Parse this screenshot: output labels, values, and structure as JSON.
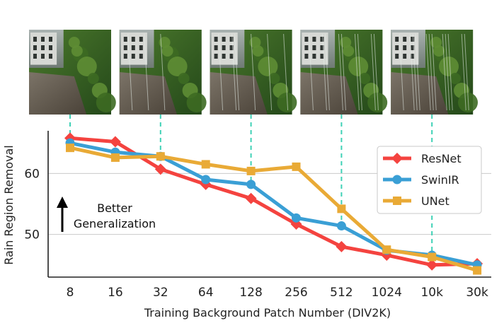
{
  "chart_data": {
    "type": "line",
    "title": "",
    "xlabel": "Training Background Patch Number (DIV2K)",
    "ylabel": "Rain Region Removal",
    "categories": [
      "8",
      "16",
      "32",
      "64",
      "128",
      "256",
      "512",
      "1024",
      "10k",
      "30k"
    ],
    "yticks": [
      50,
      60
    ],
    "ylim": [
      43,
      67
    ],
    "grid": "horizontal",
    "legend_position": "right",
    "series": [
      {
        "name": "ResNet",
        "color": "#f4433f",
        "marker": "diamond",
        "values": [
          65.8,
          65.2,
          60.7,
          58.2,
          55.9,
          51.7,
          48.0,
          46.6,
          45.0,
          45.2
        ]
      },
      {
        "name": "SwinIR",
        "color": "#3a9fd5",
        "marker": "circle",
        "values": [
          65.0,
          63.5,
          62.8,
          59.0,
          58.2,
          52.7,
          51.4,
          47.4,
          46.6,
          45.0
        ]
      },
      {
        "name": "UNet",
        "color": "#e9aa36",
        "marker": "square",
        "values": [
          64.2,
          62.6,
          62.8,
          61.5,
          60.4,
          61.1,
          54.2,
          47.5,
          46.3,
          44.1
        ]
      }
    ],
    "thumbnails_at": [
      "8",
      "32",
      "128",
      "512",
      "10k"
    ],
    "annotation": {
      "line1": "Better",
      "line2": "Generalization"
    }
  }
}
